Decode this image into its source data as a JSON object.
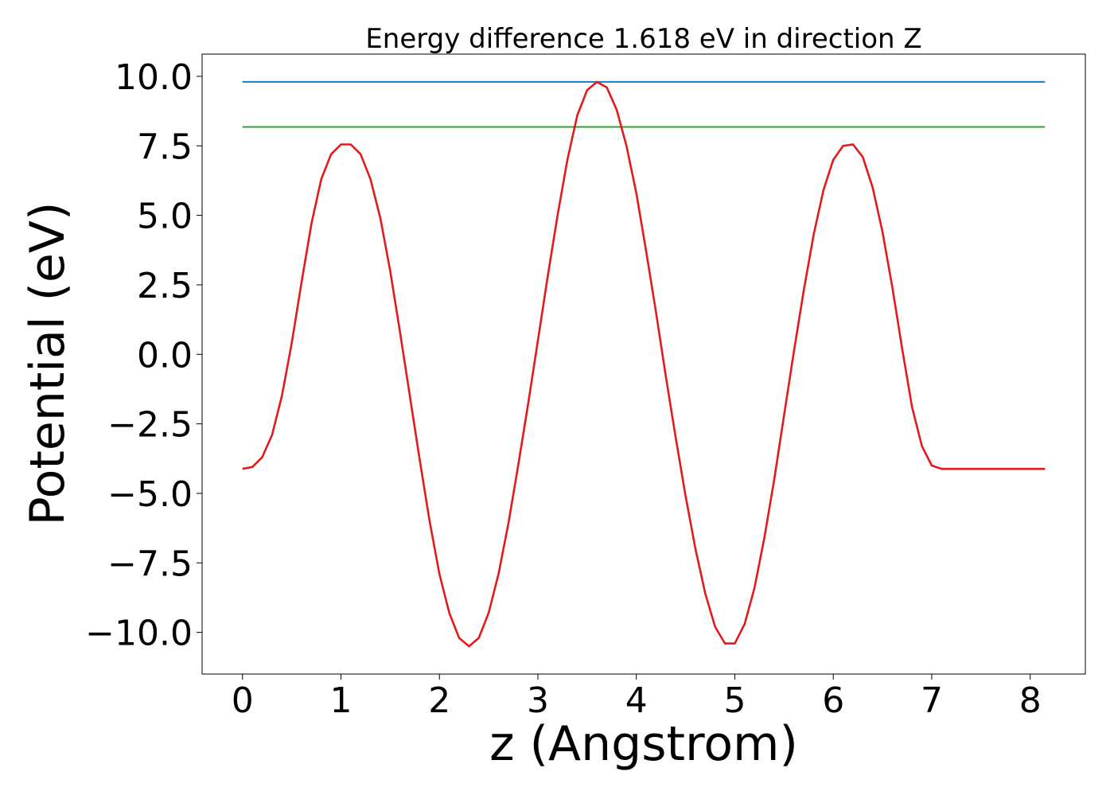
{
  "chart_data": {
    "type": "line",
    "title": "Energy difference 1.618 eV in direction Z",
    "xlabel": "z (Angstrom)",
    "ylabel": "Potential (eV)",
    "xlim": [
      -0.41,
      8.56
    ],
    "ylim": [
      -11.5,
      10.8
    ],
    "grid": false,
    "xticks": [
      0,
      1,
      2,
      3,
      4,
      5,
      6,
      7,
      8
    ],
    "xtick_labels": [
      "0",
      "1",
      "2",
      "3",
      "4",
      "5",
      "6",
      "7",
      "8"
    ],
    "yticks": [
      -10,
      -7.5,
      -5,
      -2.5,
      0,
      2.5,
      5,
      7.5,
      10
    ],
    "ytick_labels": [
      "−10.0",
      "−7.5",
      "−5.0",
      "−2.5",
      "0.0",
      "2.5",
      "5.0",
      "7.5",
      "10.0"
    ],
    "series": [
      {
        "color": "#1f77b4",
        "x": [
          0,
          8.15
        ],
        "y": [
          9.8,
          9.8
        ]
      },
      {
        "color": "#2ca02c",
        "x": [
          0,
          8.15
        ],
        "y": [
          8.18,
          8.18
        ]
      },
      {
        "color": "#e31a1c",
        "x": [
          0,
          0.1,
          0.2,
          0.3,
          0.4,
          0.5,
          0.6,
          0.7,
          0.8,
          0.9,
          1.0,
          1.1,
          1.2,
          1.3,
          1.4,
          1.5,
          1.6,
          1.7,
          1.8,
          1.9,
          2.0,
          2.1,
          2.2,
          2.3,
          2.4,
          2.5,
          2.6,
          2.7,
          2.8,
          2.9,
          3.0,
          3.1,
          3.2,
          3.3,
          3.4,
          3.5,
          3.6,
          3.7,
          3.8,
          3.9,
          4.0,
          4.1,
          4.2,
          4.3,
          4.4,
          4.5,
          4.6,
          4.7,
          4.8,
          4.9,
          5.0,
          5.1,
          5.2,
          5.3,
          5.4,
          5.5,
          5.6,
          5.7,
          5.8,
          5.9,
          6.0,
          6.1,
          6.2,
          6.3,
          6.4,
          6.5,
          6.6,
          6.7,
          6.8,
          6.9,
          7.0,
          7.1,
          7.2,
          7.3,
          7.4,
          7.5,
          7.6,
          7.7,
          7.8,
          7.9,
          8.0,
          8.1,
          8.15
        ],
        "y": [
          -4.12,
          -4.05,
          -3.7,
          -2.9,
          -1.5,
          0.4,
          2.6,
          4.7,
          6.3,
          7.2,
          7.55,
          7.55,
          7.2,
          6.3,
          4.9,
          3.0,
          0.8,
          -1.5,
          -3.8,
          -6.0,
          -7.9,
          -9.3,
          -10.2,
          -10.5,
          -10.2,
          -9.3,
          -7.9,
          -6.1,
          -4.0,
          -1.8,
          0.5,
          2.8,
          5.0,
          7.0,
          8.6,
          9.5,
          9.8,
          9.6,
          8.8,
          7.5,
          5.8,
          3.7,
          1.5,
          -0.8,
          -3.0,
          -5.1,
          -7.0,
          -8.6,
          -9.8,
          -10.4,
          -10.4,
          -9.7,
          -8.4,
          -6.6,
          -4.5,
          -2.2,
          0.1,
          2.3,
          4.3,
          5.9,
          7.0,
          7.5,
          7.55,
          7.1,
          6.0,
          4.4,
          2.4,
          0.2,
          -1.9,
          -3.3,
          -4.0,
          -4.12,
          -4.12,
          -4.12,
          -4.12,
          -4.12,
          -4.12,
          -4.12,
          -4.12,
          -4.12,
          -4.12,
          -4.12,
          -4.12
        ]
      }
    ]
  }
}
